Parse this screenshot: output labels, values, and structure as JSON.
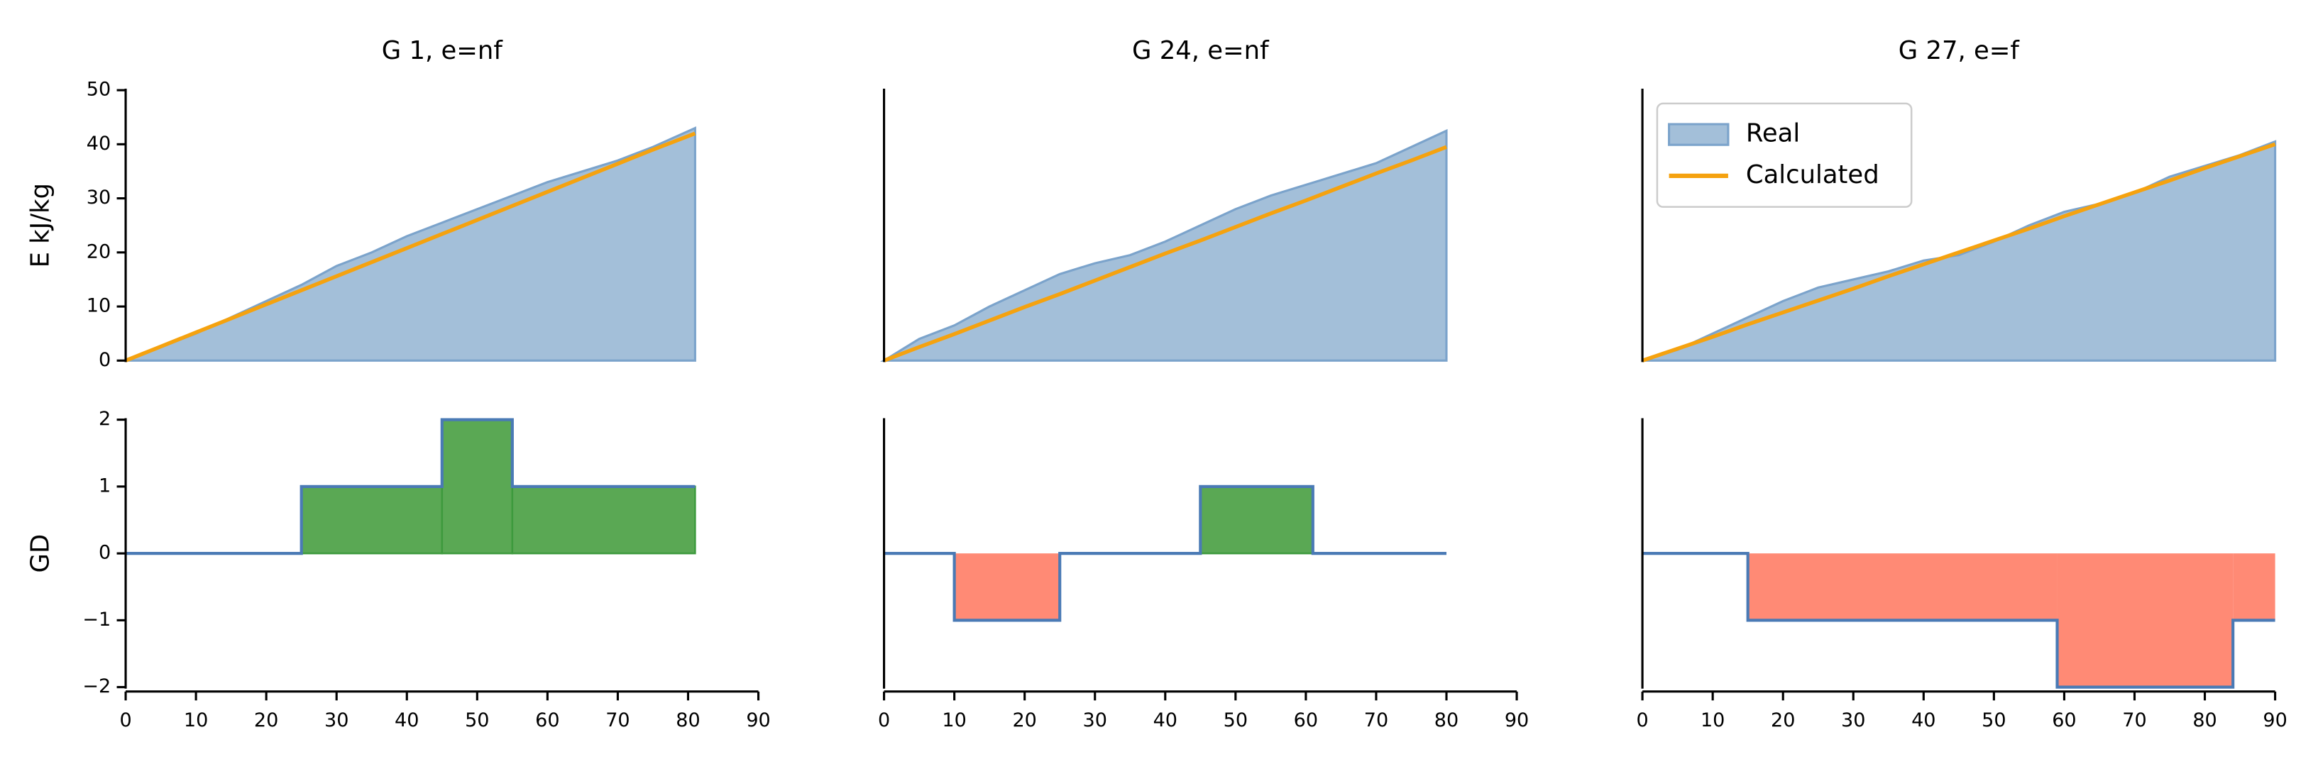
{
  "chart_data": [
    {
      "type": "area",
      "title": "G 1, e=nf",
      "ylabel": "E kJ/kg",
      "xlim": [
        0,
        90
      ],
      "ylim": [
        0,
        50
      ],
      "yticks": [
        0,
        10,
        20,
        30,
        40,
        50
      ],
      "x": [
        0,
        5,
        10,
        15,
        20,
        25,
        30,
        35,
        40,
        45,
        50,
        55,
        60,
        65,
        70,
        75,
        81
      ],
      "series": [
        {
          "style": "area",
          "color": "#a3bfd9",
          "values": [
            0,
            2.5,
            5,
            8,
            11,
            14,
            17.5,
            20,
            23,
            25.5,
            28,
            30.5,
            33,
            35,
            37,
            39.5,
            43
          ]
        },
        {
          "style": "line",
          "color": "#f5a20f",
          "values": [
            0,
            2.6,
            5.2,
            7.8,
            10.4,
            13,
            15.6,
            18.2,
            20.8,
            23.4,
            26,
            28.6,
            31.2,
            33.8,
            36.4,
            39,
            42
          ]
        }
      ]
    },
    {
      "type": "area",
      "title": "G 24, e=nf",
      "xlim": [
        0,
        90
      ],
      "ylim": [
        0,
        50
      ],
      "x": [
        0,
        5,
        10,
        15,
        20,
        25,
        30,
        35,
        40,
        45,
        50,
        55,
        60,
        65,
        70,
        75,
        80
      ],
      "series": [
        {
          "style": "area",
          "color": "#a3bfd9",
          "values": [
            0,
            4,
            6.5,
            10,
            13,
            16,
            18,
            19.5,
            22,
            25,
            28,
            30.5,
            32.5,
            34.5,
            36.5,
            39.5,
            42.5
          ]
        },
        {
          "style": "line",
          "color": "#f5a20f",
          "values": [
            0,
            2.5,
            4.9,
            7.4,
            9.9,
            12.3,
            14.8,
            17.3,
            19.8,
            22.2,
            24.7,
            27.2,
            29.6,
            32.1,
            34.6,
            37,
            39.5
          ]
        }
      ]
    },
    {
      "type": "area",
      "title": "G 27, e=f",
      "xlim": [
        0,
        90
      ],
      "ylim": [
        0,
        50
      ],
      "legend": "upper left",
      "x": [
        0,
        5,
        10,
        15,
        20,
        25,
        30,
        35,
        40,
        45,
        50,
        55,
        60,
        65,
        70,
        75,
        80,
        85,
        90
      ],
      "series": [
        {
          "name": "Real",
          "style": "area",
          "color": "#a3bfd9",
          "values": [
            0,
            2,
            5,
            8,
            11,
            13.5,
            15,
            16.5,
            18.5,
            19.5,
            22,
            25,
            27.5,
            29,
            31,
            34,
            36,
            38,
            40.5
          ]
        },
        {
          "name": "Calculated",
          "style": "line",
          "color": "#f5a20f",
          "values": [
            0,
            2.2,
            4.4,
            6.7,
            8.9,
            11.1,
            13.3,
            15.6,
            17.8,
            20,
            22.2,
            24.4,
            26.7,
            28.9,
            31.1,
            33.3,
            35.6,
            37.8,
            40
          ]
        }
      ]
    },
    {
      "type": "step",
      "ylabel": "GD",
      "xlim": [
        0,
        90
      ],
      "ylim": [
        -2,
        2
      ],
      "yticks": [
        {
          "value": -2,
          "label": "−2"
        },
        {
          "value": -1,
          "label": "−1"
        },
        0,
        1,
        2
      ],
      "xticks": [
        0,
        10,
        20,
        30,
        40,
        50,
        60,
        70,
        80,
        90
      ],
      "color": "#4a7ab5",
      "pos_color": "#5aa854",
      "neg_color": "#ff8a75",
      "x": [
        0,
        25,
        45,
        55,
        81
      ],
      "values": [
        0,
        1,
        2,
        1,
        1
      ]
    },
    {
      "type": "step",
      "xlim": [
        0,
        90
      ],
      "ylim": [
        -2,
        2
      ],
      "xticks": [
        0,
        10,
        20,
        30,
        40,
        50,
        60,
        70,
        80,
        90
      ],
      "color": "#4a7ab5",
      "pos_color": "#5aa854",
      "neg_color": "#ff8a75",
      "x": [
        0,
        10,
        25,
        45,
        61,
        80
      ],
      "values": [
        0,
        -1,
        0,
        1,
        0,
        0
      ]
    },
    {
      "type": "step",
      "xlim": [
        0,
        90
      ],
      "ylim": [
        -2,
        2
      ],
      "xticks": [
        0,
        10,
        20,
        30,
        40,
        50,
        60,
        70,
        80,
        90
      ],
      "color": "#4a7ab5",
      "pos_color": "#5aa854",
      "neg_color": "#ff8a75",
      "x": [
        0,
        15,
        59,
        84,
        90
      ],
      "values": [
        0,
        -1,
        -2,
        -1,
        -1
      ]
    }
  ]
}
